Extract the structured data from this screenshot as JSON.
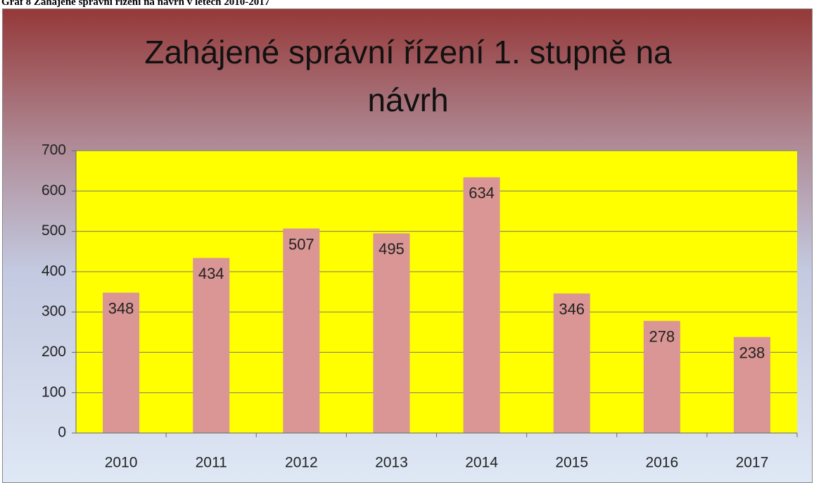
{
  "caption": "Graf 8 Zahájené správní řízení na návrh v letech 2010-2017",
  "chart_data": {
    "type": "bar",
    "title": "Zahájené správní řízení 1. stupně na návrh",
    "categories": [
      "2010",
      "2011",
      "2012",
      "2013",
      "2014",
      "2015",
      "2016",
      "2017"
    ],
    "values": [
      348,
      434,
      507,
      495,
      634,
      346,
      278,
      238
    ],
    "color": "#d99694",
    "plot_background": "#ffff00",
    "ylim": [
      0,
      700
    ],
    "yticks": [
      0,
      100,
      200,
      300,
      400,
      500,
      600,
      700
    ],
    "grid": true
  }
}
